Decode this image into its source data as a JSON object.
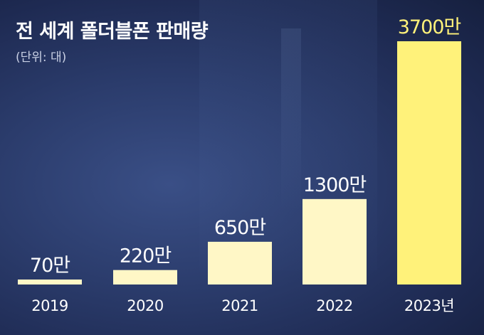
{
  "header": {
    "title": "전 세계 폴더블폰 판매량",
    "unit": "(단위: 대)"
  },
  "colors": {
    "bar_fill": "#fff7c6",
    "bar_highlight": "#fff27a",
    "label_normal": "#ffffff",
    "label_highlight": "#fff27a"
  },
  "chart_data": {
    "type": "bar",
    "categories": [
      "2019",
      "2020",
      "2021",
      "2022",
      "2023년"
    ],
    "values": [
      70,
      220,
      650,
      1300,
      3700
    ],
    "value_labels": [
      "70만",
      "220만",
      "650만",
      "1300만",
      "3700만"
    ],
    "highlight_index": 4,
    "title": "전 세계 폴더블폰 판매량",
    "subtitle": "(단위: 대)",
    "xlabel": "",
    "ylabel": "",
    "ylim": [
      0,
      3700
    ],
    "grid": false
  }
}
